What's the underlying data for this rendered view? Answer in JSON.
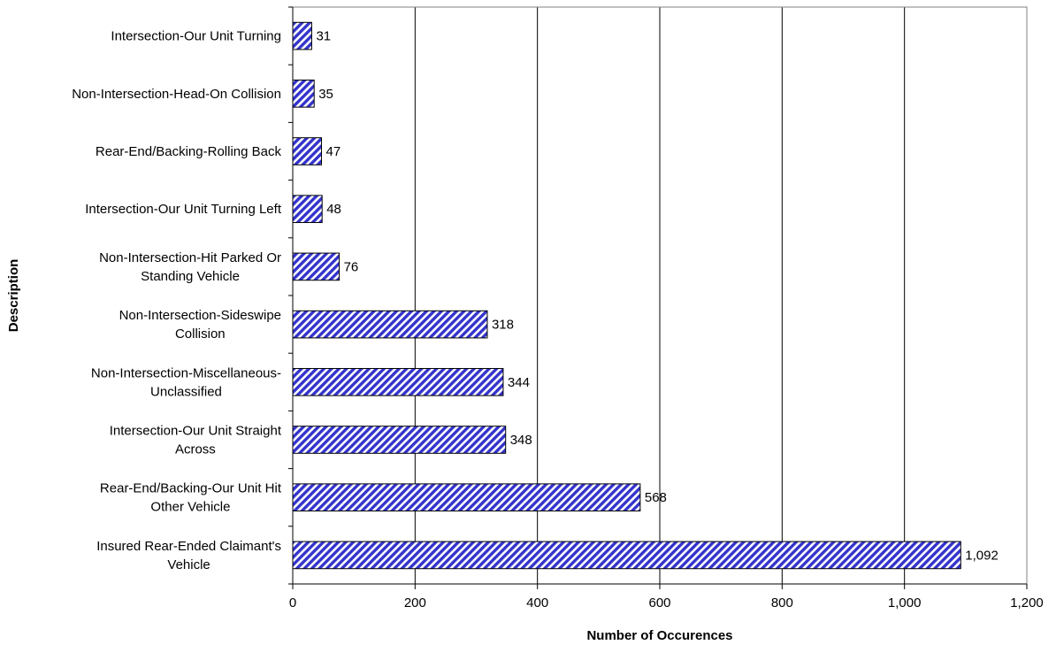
{
  "chart_data": {
    "type": "bar",
    "orientation": "horizontal",
    "title": "",
    "xlabel": "Number of Occurences",
    "ylabel": "Description",
    "xlim": [
      0,
      1200
    ],
    "x_ticks": [
      "0",
      "200",
      "400",
      "600",
      "800",
      "1,000",
      "1,200"
    ],
    "grid": "vertical major gridlines",
    "legend": "none",
    "bar_fill": "#3333cc",
    "bar_pattern": "diagonal hatch",
    "categories": [
      {
        "lines": [
          "Intersection-Our Unit Turning"
        ]
      },
      {
        "lines": [
          "Non-Intersection-Head-On Collision"
        ]
      },
      {
        "lines": [
          "Rear-End/Backing-Rolling Back"
        ]
      },
      {
        "lines": [
          "Intersection-Our Unit Turning Left"
        ]
      },
      {
        "lines": [
          "Non-Intersection-Hit Parked Or",
          "Standing Vehicle"
        ]
      },
      {
        "lines": [
          "Non-Intersection-Sideswipe",
          "Collision"
        ]
      },
      {
        "lines": [
          "Non-Intersection-Miscellaneous-",
          "Unclassified"
        ]
      },
      {
        "lines": [
          "Intersection-Our Unit Straight",
          "Across"
        ]
      },
      {
        "lines": [
          "Rear-End/Backing-Our Unit Hit",
          "Other Vehicle"
        ]
      },
      {
        "lines": [
          "Insured Rear-Ended Claimant's",
          "Vehicle"
        ]
      }
    ],
    "values": [
      31,
      35,
      47,
      48,
      76,
      318,
      344,
      348,
      568,
      1092
    ],
    "value_labels": [
      "31",
      "35",
      "47",
      "48",
      "76",
      "318",
      "344",
      "348",
      "568",
      "1,092"
    ]
  }
}
